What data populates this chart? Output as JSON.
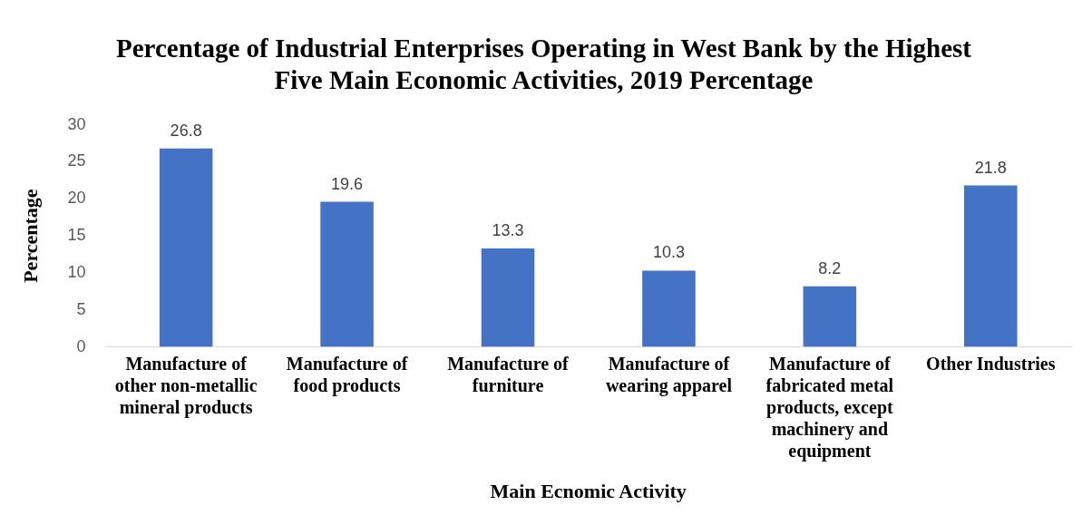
{
  "chart_data": {
    "type": "bar",
    "title": "Percentage of Industrial Enterprises Operating in West Bank by the Highest Five Main Economic Activities, 2019 Percentage",
    "xlabel": "Main Ecnomic Activity",
    "ylabel": "Percentage",
    "categories": [
      "Manufacture of other non-metallic mineral products",
      "Manufacture of food products",
      "Manufacture of furniture",
      "Manufacture of wearing apparel",
      "Manufacture of fabricated metal products, except machinery and equipment",
      "Other Industries"
    ],
    "values": [
      26.8,
      19.6,
      13.3,
      10.3,
      8.2,
      21.8
    ],
    "color": "#4472c4",
    "ylim": [
      0,
      30
    ],
    "yticks": [
      0,
      5,
      10,
      15,
      20,
      25,
      30
    ],
    "grid": false,
    "legend": false,
    "data_labels": true
  }
}
